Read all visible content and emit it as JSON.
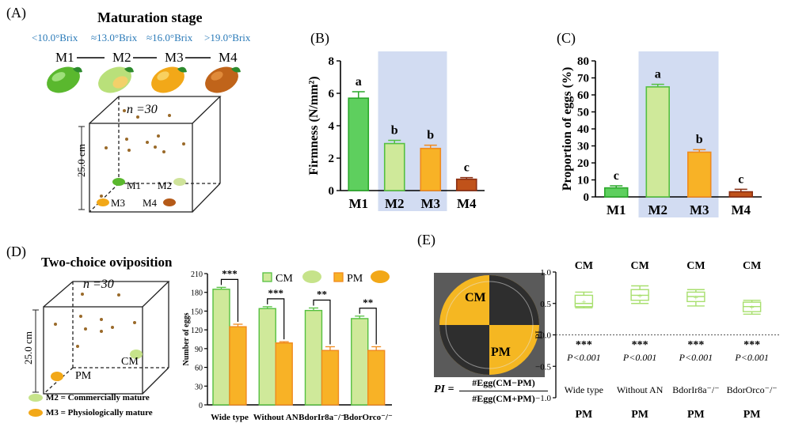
{
  "panels": {
    "A": {
      "letter": "(A)",
      "title": "Maturation stage",
      "brix": [
        "<10.0°Brix",
        "≈13.0°Brix",
        "≈16.0°Brix",
        ">19.0°Brix"
      ],
      "stages": [
        "M1",
        "M2",
        "M3",
        "M4"
      ],
      "n_label": "n =30",
      "height_label": "25.0 cm",
      "cube_labels": [
        "M1",
        "M2",
        "M3",
        "M4"
      ]
    },
    "D": {
      "letter": "(D)",
      "title": "Two-choice oviposition",
      "n_label": "n =30",
      "height_label": "25.0 cm",
      "cube_labels": [
        "CM",
        "PM"
      ],
      "legend": [
        "M2 = Commercially mature",
        "M3 = Physiologically mature"
      ]
    },
    "E": {
      "letter": "(E)",
      "dish_labels": [
        "CM",
        "PM"
      ],
      "formula_lhs": "PI =",
      "formula_num": "#Egg(CM−PM)",
      "formula_den": "#Egg(CM+PM)"
    }
  },
  "colors": {
    "green_fill": "#5ecf5e",
    "green_edge": "#2aa82a",
    "lightgreen_fill": "#cfe99a",
    "lightgreen_edge": "#55c040",
    "orange_fill": "#f8b226",
    "orange_edge": "#f08a1e",
    "brown_fill": "#c0521a",
    "brown_edge": "#8a2e12",
    "highlight": "#c7d3ef",
    "box_green": "#a8df6e"
  },
  "chart_data": [
    {
      "panel": "(B)",
      "type": "bar",
      "categories": [
        "M1",
        "M2",
        "M3",
        "M4"
      ],
      "values": [
        5.7,
        2.9,
        2.6,
        0.7
      ],
      "errors": [
        0.4,
        0.2,
        0.2,
        0.1
      ],
      "letters": [
        "a",
        "b",
        "b",
        "c"
      ],
      "ylabel": "Firmness (N/mm²)",
      "ylim": [
        0,
        8
      ],
      "yticks": [
        "0",
        "2",
        "4",
        "6",
        "8"
      ]
    },
    {
      "panel": "(C)",
      "type": "bar",
      "categories": [
        "M1",
        "M2",
        "M3",
        "M4"
      ],
      "values": [
        5.3,
        64.7,
        26.3,
        3.0
      ],
      "errors": [
        1.2,
        1.5,
        1.5,
        1.5
      ],
      "letters": [
        "c",
        "a",
        "b",
        "c"
      ],
      "ylabel": "Proportion of eggs (%)",
      "ylim": [
        0,
        80
      ],
      "yticks": [
        "0",
        "10",
        "20",
        "30",
        "40",
        "50",
        "60",
        "70",
        "80"
      ]
    },
    {
      "panel": "(D)",
      "type": "bar",
      "categories": [
        "Wide type",
        "Without AN",
        "BdorIr8a⁻/⁻",
        "BdorOrco⁻/⁻"
      ],
      "series": [
        {
          "name": "CM",
          "values": [
            185,
            154,
            151,
            138
          ],
          "errors": [
            3,
            3,
            4,
            4
          ]
        },
        {
          "name": "PM",
          "values": [
            125,
            99,
            87,
            87
          ],
          "errors": [
            4,
            2,
            6,
            6
          ]
        }
      ],
      "significance": [
        "***",
        "***",
        "**",
        "**"
      ],
      "ylabel": "Number of eggs",
      "ylim": [
        0,
        210
      ],
      "yticks": [
        "0",
        "30",
        "60",
        "90",
        "120",
        "150",
        "180",
        "210"
      ]
    },
    {
      "panel": "(E)",
      "type": "box",
      "categories": [
        "Wide type",
        "Without AN",
        "BdorIr8a⁻/⁻",
        "BdorOrco⁻/⁻"
      ],
      "boxes": [
        {
          "min": 0.43,
          "q1": 0.45,
          "median": 0.5,
          "q3": 0.63,
          "max": 0.68,
          "mean": 0.53
        },
        {
          "min": 0.5,
          "q1": 0.55,
          "median": 0.63,
          "q3": 0.72,
          "max": 0.78,
          "mean": 0.62
        },
        {
          "min": 0.46,
          "q1": 0.53,
          "median": 0.61,
          "q3": 0.68,
          "max": 0.72,
          "mean": 0.6
        },
        {
          "min": 0.33,
          "q1": 0.37,
          "median": 0.45,
          "q3": 0.52,
          "max": 0.55,
          "mean": 0.44
        }
      ],
      "significance": [
        "***",
        "***",
        "***",
        "***"
      ],
      "pvalues": [
        "P<0.001",
        "P<0.001",
        "P<0.001",
        "P<0.001"
      ],
      "top_label": "CM",
      "bottom_label": "PM",
      "ylabel": "PI",
      "ylim": [
        -1.0,
        1.0
      ],
      "yticks": [
        "−1.0",
        "−0.5",
        "0.0",
        "0.5",
        "1.0"
      ]
    }
  ]
}
